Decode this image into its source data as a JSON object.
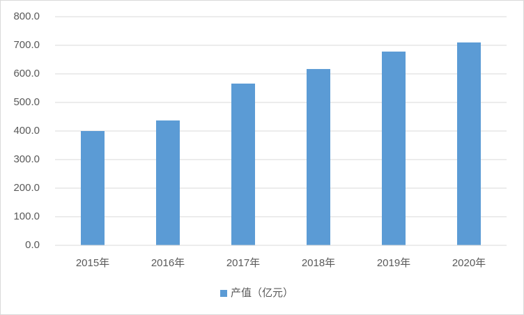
{
  "chart_data": {
    "type": "bar",
    "categories": [
      "2015年",
      "2016年",
      "2017年",
      "2018年",
      "2019年",
      "2020年"
    ],
    "series": [
      {
        "name": "产值（亿元）",
        "color": "#5b9bd5",
        "values": [
          400,
          437,
          566,
          617,
          678,
          710
        ]
      }
    ],
    "ylim": [
      0,
      800
    ],
    "yticks": [
      {
        "value": 0,
        "label": "0.0"
      },
      {
        "value": 100,
        "label": "100.0"
      },
      {
        "value": 200,
        "label": "200.0"
      },
      {
        "value": 300,
        "label": "300.0"
      },
      {
        "value": 400,
        "label": "400.0"
      },
      {
        "value": 500,
        "label": "500.0"
      },
      {
        "value": 600,
        "label": "600.0"
      },
      {
        "value": 700,
        "label": "700.0"
      },
      {
        "value": 800,
        "label": "800.0"
      }
    ],
    "grid": true,
    "legend": "bottom"
  }
}
